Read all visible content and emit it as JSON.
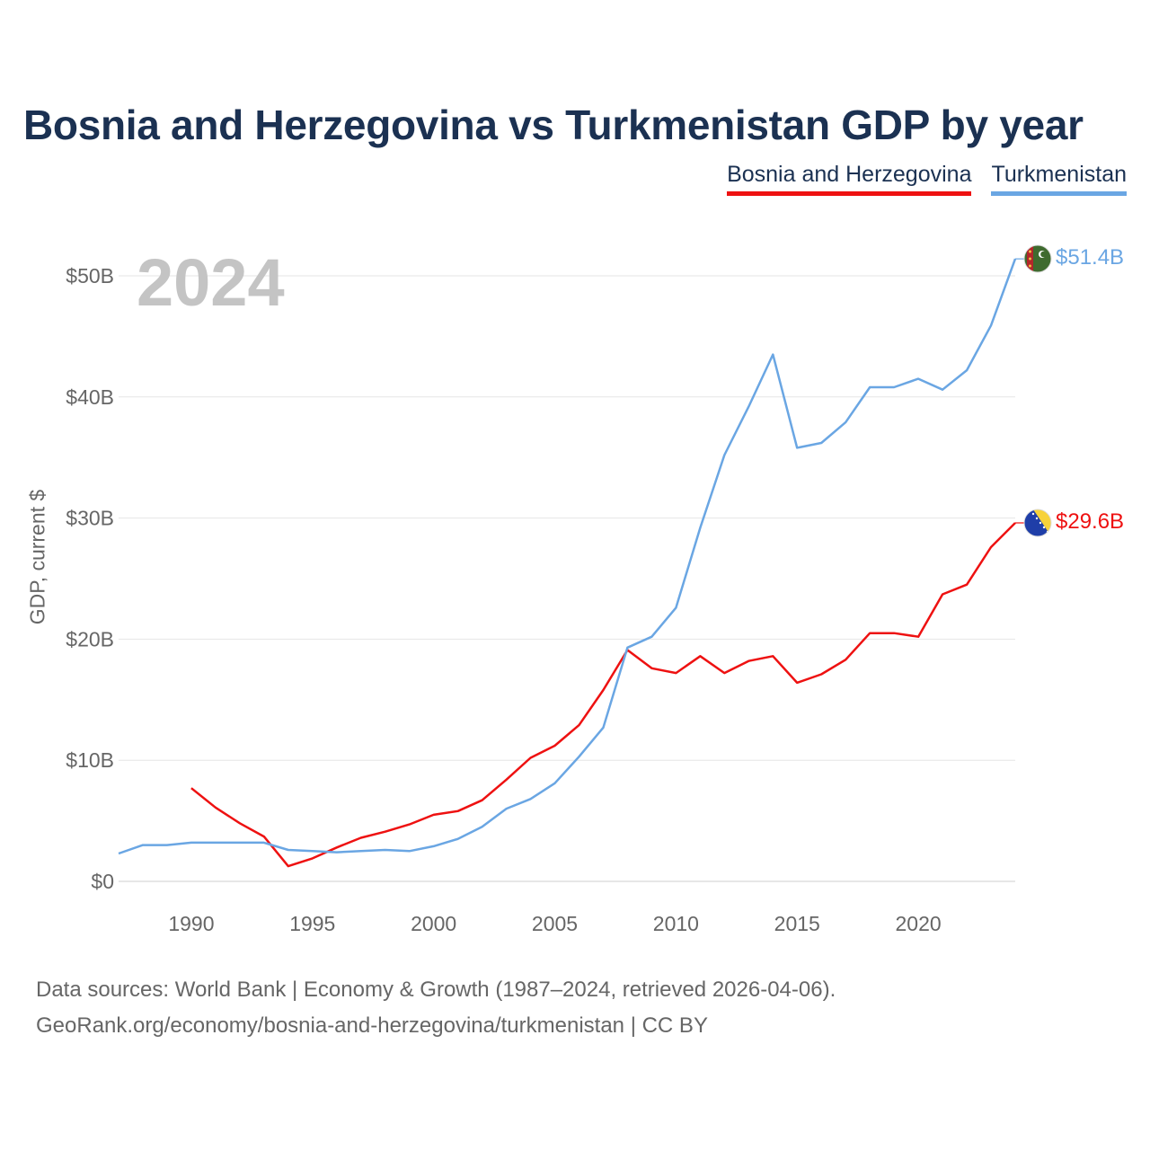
{
  "title": "Bosnia and Herzegovina vs Turkmenistan GDP by year",
  "year_label": "2024",
  "legend": [
    "Bosnia and Herzegovina",
    "Turkmenistan"
  ],
  "ylabel": "GDP, current $",
  "footer": {
    "line1": "Data sources: World Bank | Economy & Growth (1987–2024, retrieved 2026-04-06).",
    "line2": "GeoRank.org/economy/bosnia-and-herzegovina/turkmenistan | CC BY"
  },
  "chart_data": {
    "type": "line",
    "title": "Bosnia and Herzegovina vs Turkmenistan GDP by year",
    "xlabel": "",
    "ylabel": "GDP, current $",
    "xlim": [
      1987,
      2024
    ],
    "ylim": [
      0,
      50
    ],
    "y_unit": "billion USD",
    "x_ticks": [
      1990,
      1995,
      2000,
      2005,
      2010,
      2015,
      2020
    ],
    "y_ticks": [
      0,
      10,
      20,
      30,
      40,
      50
    ],
    "y_tick_labels": [
      "$0",
      "$10B",
      "$20B",
      "$30B",
      "$40B",
      "$50B"
    ],
    "grid": true,
    "series": [
      {
        "name": "Bosnia and Herzegovina",
        "color": "#ee1111",
        "end_label": "$29.6B",
        "flag_icon": "bosnia-flag-icon",
        "x": [
          1990,
          1991,
          1992,
          1993,
          1994,
          1995,
          1996,
          1997,
          1998,
          1999,
          2000,
          2001,
          2002,
          2003,
          2004,
          2005,
          2006,
          2007,
          2008,
          2009,
          2010,
          2011,
          2012,
          2013,
          2014,
          2015,
          2016,
          2017,
          2018,
          2019,
          2020,
          2021,
          2022,
          2023,
          2024
        ],
        "values": [
          7.7,
          6.1,
          4.8,
          3.7,
          1.25,
          1.9,
          2.8,
          3.6,
          4.1,
          4.7,
          5.5,
          5.8,
          6.7,
          8.4,
          10.2,
          11.2,
          12.9,
          15.8,
          19.1,
          17.6,
          17.2,
          18.6,
          17.2,
          18.2,
          18.6,
          16.4,
          17.1,
          18.3,
          20.5,
          20.5,
          20.2,
          23.7,
          24.5,
          27.6,
          29.6
        ]
      },
      {
        "name": "Turkmenistan",
        "color": "#6aa6e3",
        "end_label": "$51.4B",
        "flag_icon": "turkmenistan-flag-icon",
        "x": [
          1987,
          1988,
          1989,
          1990,
          1991,
          1992,
          1993,
          1994,
          1995,
          1996,
          1997,
          1998,
          1999,
          2000,
          2001,
          2002,
          2003,
          2004,
          2005,
          2006,
          2007,
          2008,
          2009,
          2010,
          2011,
          2012,
          2013,
          2014,
          2015,
          2016,
          2017,
          2018,
          2019,
          2020,
          2021,
          2022,
          2023,
          2024
        ],
        "values": [
          2.3,
          3.0,
          3.0,
          3.2,
          3.2,
          3.2,
          3.2,
          2.6,
          2.5,
          2.4,
          2.5,
          2.6,
          2.5,
          2.9,
          3.5,
          4.5,
          6.0,
          6.8,
          8.1,
          10.3,
          12.7,
          19.3,
          20.2,
          22.6,
          29.2,
          35.2,
          39.2,
          43.5,
          35.8,
          36.2,
          37.9,
          40.8,
          40.8,
          41.5,
          40.6,
          42.2,
          45.9,
          51.4
        ]
      }
    ]
  }
}
